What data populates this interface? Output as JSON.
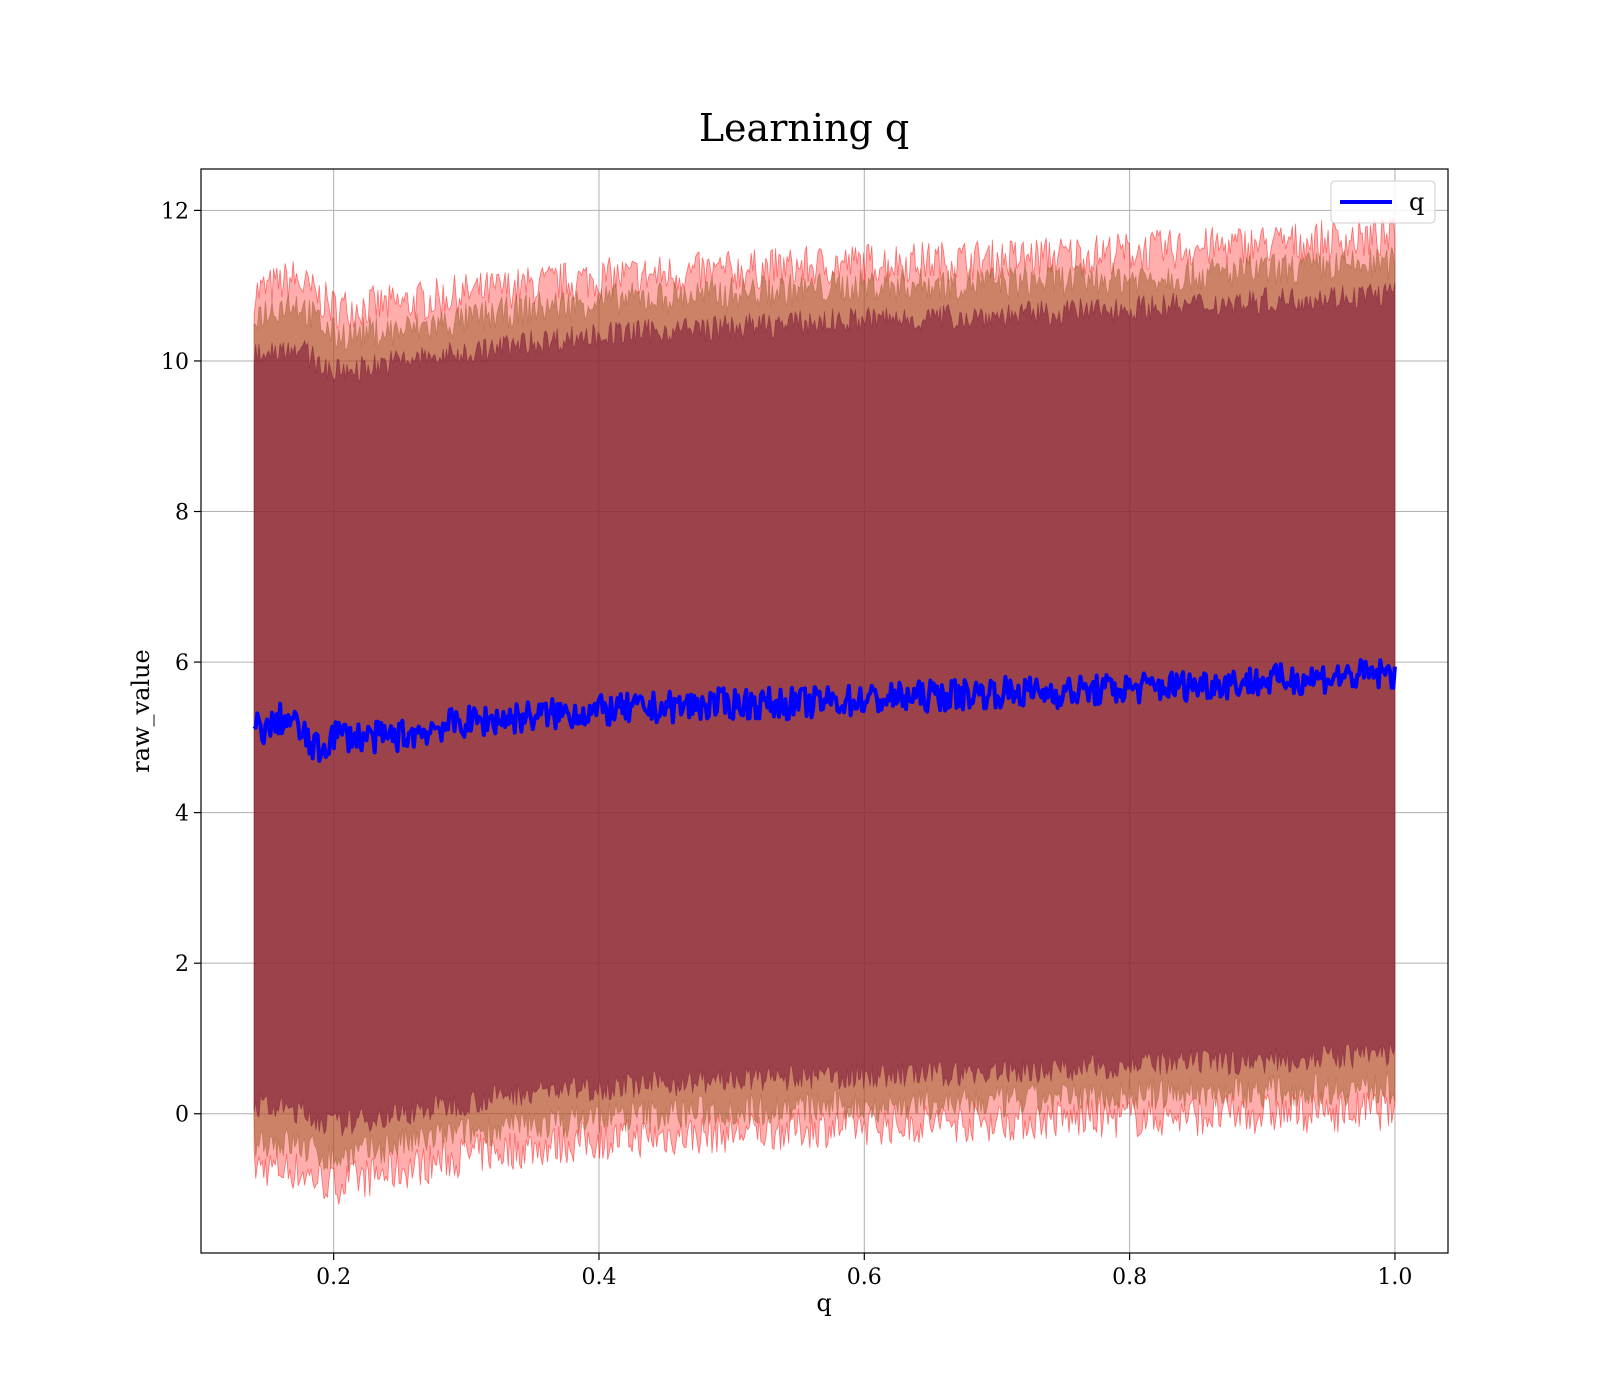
{
  "chart_data": {
    "type": "line",
    "title": "Learning q",
    "xlabel": "q",
    "ylabel": "raw_value",
    "xlim": [
      0.1,
      1.04
    ],
    "ylim": [
      -1.85,
      12.55
    ],
    "xticks": [
      0.2,
      0.4,
      0.6,
      0.8,
      1.0
    ],
    "xtick_labels": [
      "0.2",
      "0.4",
      "0.6",
      "0.8",
      "1.0"
    ],
    "yticks": [
      0,
      2,
      4,
      6,
      8,
      10,
      12
    ],
    "ytick_labels": [
      "0",
      "2",
      "4",
      "6",
      "8",
      "10",
      "12"
    ],
    "grid": true,
    "legend_position": "top-right",
    "colors": {
      "line": "#0000ff",
      "band_outer": "#ff0000",
      "band_middle": "#a06030",
      "band_inner": "#801a3a"
    },
    "series": [
      {
        "name": "q",
        "x": [
          0.14,
          0.15,
          0.16,
          0.17,
          0.18,
          0.19,
          0.2,
          0.22,
          0.24,
          0.26,
          0.28,
          0.3,
          0.33,
          0.36,
          0.4,
          0.45,
          0.5,
          0.55,
          0.6,
          0.65,
          0.7,
          0.75,
          0.8,
          0.85,
          0.9,
          0.95,
          1.0
        ],
        "y": [
          5.15,
          5.1,
          5.25,
          5.2,
          4.95,
          4.8,
          5.05,
          5.0,
          5.0,
          5.05,
          5.15,
          5.2,
          5.25,
          5.3,
          5.35,
          5.4,
          5.45,
          5.45,
          5.5,
          5.55,
          5.6,
          5.6,
          5.65,
          5.7,
          5.75,
          5.8,
          5.85
        ]
      }
    ],
    "bands": [
      {
        "role": "outer",
        "x": [
          0.14,
          0.17,
          0.2,
          0.25,
          0.3,
          0.35,
          0.4,
          0.5,
          0.6,
          0.7,
          0.8,
          0.9,
          1.0
        ],
        "upper": [
          10.9,
          11.1,
          10.7,
          10.75,
          10.9,
          11.0,
          11.1,
          11.2,
          11.3,
          11.35,
          11.45,
          11.55,
          11.65
        ],
        "lower": [
          -0.7,
          -0.75,
          -0.95,
          -0.75,
          -0.55,
          -0.45,
          -0.35,
          -0.25,
          -0.15,
          -0.1,
          -0.05,
          0.0,
          0.05
        ]
      },
      {
        "role": "middle",
        "x": [
          0.14,
          0.17,
          0.2,
          0.25,
          0.3,
          0.35,
          0.4,
          0.5,
          0.6,
          0.7,
          0.8,
          0.9,
          1.0
        ],
        "upper": [
          10.6,
          10.8,
          10.35,
          10.4,
          10.55,
          10.7,
          10.8,
          10.9,
          11.0,
          11.05,
          11.1,
          11.2,
          11.3
        ],
        "lower": [
          -0.35,
          -0.4,
          -0.6,
          -0.4,
          -0.25,
          -0.15,
          -0.05,
          0.05,
          0.1,
          0.15,
          0.25,
          0.3,
          0.35
        ]
      },
      {
        "role": "inner",
        "x": [
          0.14,
          0.17,
          0.2,
          0.25,
          0.3,
          0.35,
          0.4,
          0.5,
          0.6,
          0.7,
          0.8,
          0.9,
          1.0
        ],
        "upper": [
          10.1,
          10.2,
          9.85,
          10.0,
          10.1,
          10.25,
          10.35,
          10.45,
          10.55,
          10.6,
          10.7,
          10.8,
          10.9
        ],
        "lower": [
          0.1,
          0.05,
          -0.15,
          0.0,
          0.15,
          0.3,
          0.35,
          0.45,
          0.5,
          0.55,
          0.65,
          0.7,
          0.8
        ]
      }
    ]
  }
}
